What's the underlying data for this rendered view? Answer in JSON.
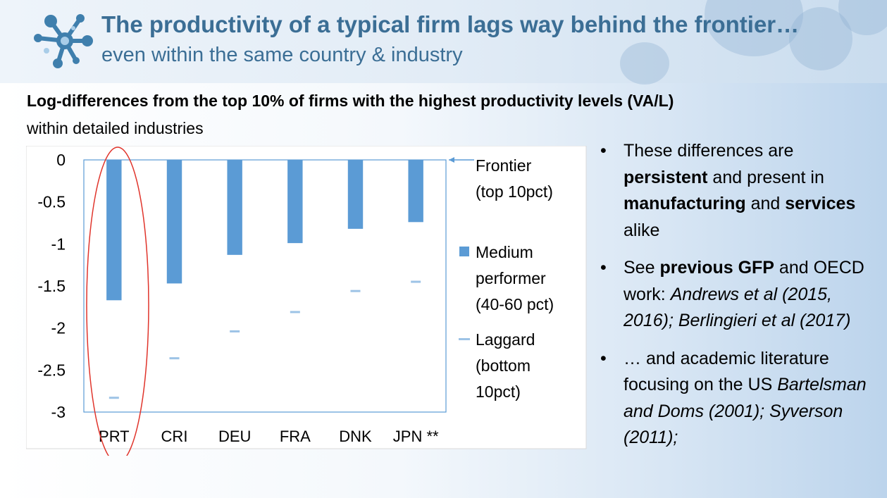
{
  "slide": {
    "title": "The productivity of a typical firm lags way behind the frontier…",
    "subtitle": "even within the same country & industry"
  },
  "colors": {
    "title": "#3b6e95",
    "medium_bar": "#5b9bd5",
    "laggard_marker": "#9dc3e6",
    "highlight_ellipse": "#e0342b"
  },
  "icons": {
    "logo": "molecule-logo-icon"
  },
  "chart_data": {
    "type": "bar",
    "title": "Log-differences from the top 10% of firms with the highest productivity levels (VA/L)",
    "subtitle": "within detailed industries",
    "categories": [
      "PRT",
      "CRI",
      "DEU",
      "FRA",
      "DNK",
      "JPN **"
    ],
    "ylim": [
      -3,
      0
    ],
    "yticks": [
      "0",
      "-0.5",
      "-1",
      "-1.5",
      "-2",
      "-2.5",
      "-3"
    ],
    "ytick_values": [
      0,
      -0.5,
      -1,
      -1.5,
      -2,
      -2.5,
      -3
    ],
    "grid": false,
    "legend_placement": "right",
    "highlighted_category": "PRT",
    "series": [
      {
        "name": "Frontier (top 10pct)",
        "kind": "line",
        "values": [
          0,
          0,
          0,
          0,
          0,
          0
        ]
      },
      {
        "name": "Medium performer (40-60 pct)",
        "kind": "bar",
        "values": [
          -1.67,
          -1.47,
          -1.13,
          -0.99,
          -0.82,
          -0.74
        ]
      },
      {
        "name": "Laggard (bottom 10pct)",
        "kind": "marker",
        "values": [
          -2.83,
          -2.36,
          -2.04,
          -1.81,
          -1.56,
          -1.45
        ]
      }
    ],
    "legend": {
      "frontier_lines": [
        "Frontier",
        "(top 10pct)"
      ],
      "medium_lines": [
        "Medium",
        "performer",
        "(40-60 pct)"
      ],
      "laggard_lines": [
        "Laggard",
        "(bottom",
        "10pct)"
      ]
    }
  },
  "bullets": {
    "b1": {
      "t1": "These differences are ",
      "t2": "persistent",
      "t3": " and present in ",
      "t4": "manufacturing",
      "t5": " and ",
      "t6": "services",
      "t7": " alike"
    },
    "b2": {
      "t1": "See ",
      "t2": "previous GFP",
      "t3": " and OECD work: ",
      "t4": "Andrews et al (2015, 2016); Berlingieri et al (2017)"
    },
    "b3": {
      "t1": "… and academic literature focusing on the US ",
      "t2": "Bartelsman and Doms (2001); Syverson (2011);"
    }
  }
}
